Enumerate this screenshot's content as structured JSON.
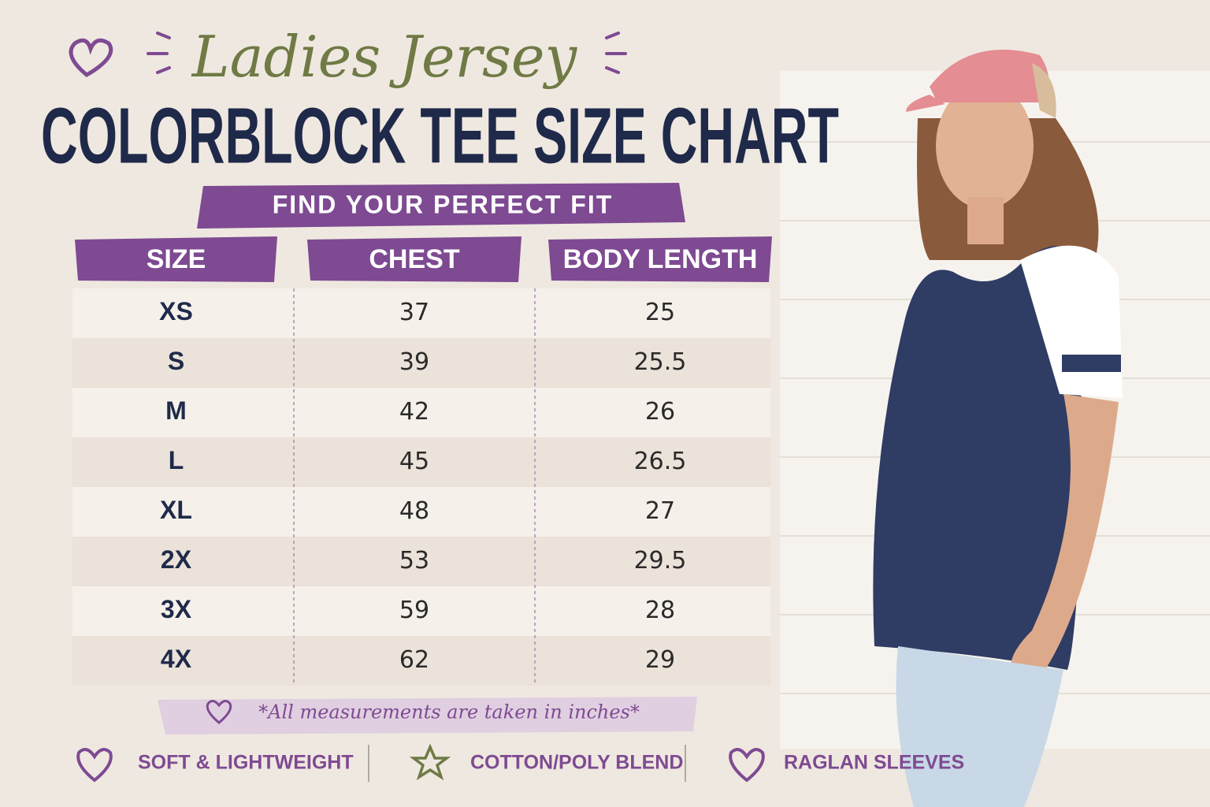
{
  "header": {
    "subtitle": "Ladies Jersey",
    "title": "COLORBLOCK TEE SIZE CHART",
    "banner": "FIND YOUR PERFECT FIT"
  },
  "table": {
    "columns": [
      "SIZE",
      "CHEST",
      "BODY LENGTH"
    ],
    "rows": [
      [
        "XS",
        "37",
        "25"
      ],
      [
        "S",
        "39",
        "25.5"
      ],
      [
        "M",
        "42",
        "26"
      ],
      [
        "L",
        "45",
        "26.5"
      ],
      [
        "XL",
        "48",
        "27"
      ],
      [
        "2X",
        "53",
        "29.5"
      ],
      [
        "3X",
        "59",
        "28"
      ],
      [
        "4X",
        "62",
        "29"
      ]
    ]
  },
  "note": "*All measurements are taken in inches*",
  "features": [
    "SOFT & LIGHTWEIGHT",
    "COTTON/POLY BLEND",
    "RAGLAN SLEEVES"
  ]
}
